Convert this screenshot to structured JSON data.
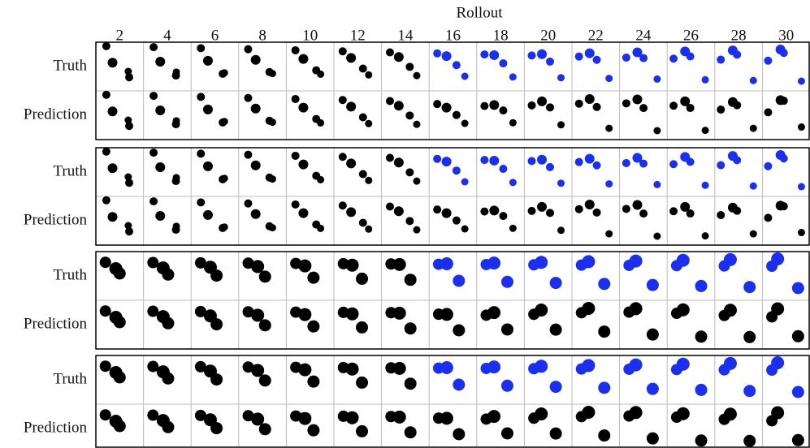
{
  "header": {
    "title": "Rollout"
  },
  "columns": [
    "2",
    "4",
    "6",
    "8",
    "10",
    "12",
    "14",
    "16",
    "18",
    "20",
    "22",
    "24",
    "26",
    "28",
    "30"
  ],
  "groups": [
    {
      "rows": [
        "Truth",
        "Prediction"
      ]
    },
    {
      "rows": [
        "Truth",
        "Prediction"
      ]
    },
    {
      "rows": [
        "Truth",
        "Prediction"
      ]
    },
    {
      "rows": [
        "Truth",
        "Prediction"
      ]
    }
  ]
}
